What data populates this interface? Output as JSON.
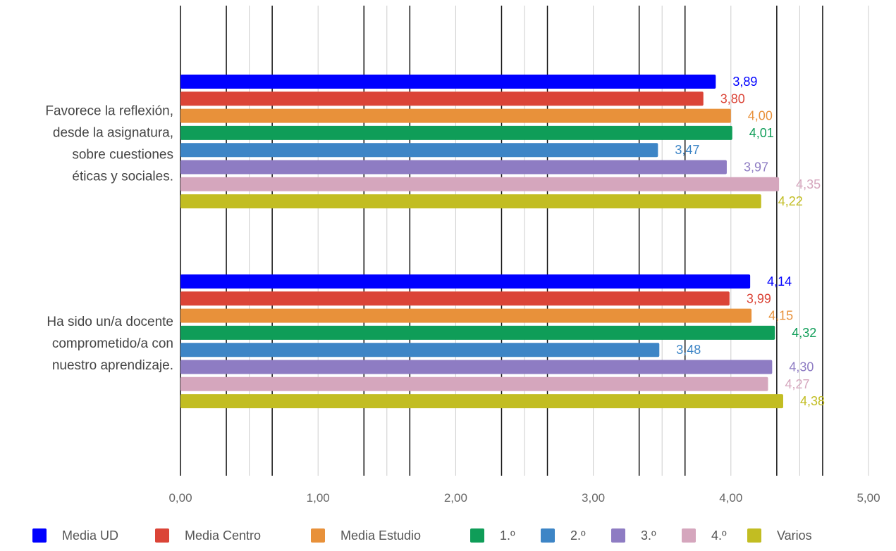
{
  "chart_data": {
    "type": "bar",
    "orientation": "horizontal",
    "title": "",
    "xlabel": "",
    "ylabel": "",
    "xlim": [
      0,
      5
    ],
    "x_ticks": [
      "0,00",
      "1,00",
      "2,00",
      "3,00",
      "4,00",
      "5,00"
    ],
    "grid": true,
    "legend_position": "bottom",
    "categories": [
      {
        "lines": [
          "Favorece la reflexión,",
          "desde la asignatura,",
          "sobre cuestiones",
          "éticas y sociales."
        ]
      },
      {
        "lines": [
          "Ha sido un/a docente",
          "comprometido/a con",
          "nuestro aprendizaje."
        ]
      }
    ],
    "series": [
      {
        "name": "Media UD",
        "color": "#0000ff",
        "values": [
          3.89,
          4.14
        ],
        "labels": [
          "3,89",
          "4,14"
        ]
      },
      {
        "name": "Media Centro",
        "color": "#db4437",
        "values": [
          3.8,
          3.99
        ],
        "labels": [
          "3,80",
          "3,99"
        ]
      },
      {
        "name": "Media Estudio",
        "color": "#e8913a",
        "values": [
          4.0,
          4.15
        ],
        "labels": [
          "4,00",
          "4,15"
        ]
      },
      {
        "name": "1.º",
        "color": "#0f9d58",
        "values": [
          4.01,
          4.32
        ],
        "labels": [
          "4,01",
          "4,32"
        ]
      },
      {
        "name": "2.º",
        "color": "#3d85c6",
        "values": [
          3.47,
          3.48
        ],
        "labels": [
          "3,47",
          "3,48"
        ]
      },
      {
        "name": "3.º",
        "color": "#8e7cc3",
        "values": [
          3.97,
          4.3
        ],
        "labels": [
          "3,97",
          "4,30"
        ]
      },
      {
        "name": "4.º",
        "color": "#d5a6bd",
        "values": [
          4.35,
          4.27
        ],
        "labels": [
          "4,35",
          "4,27"
        ]
      },
      {
        "name": "Varios",
        "color": "#c2bd22",
        "values": [
          4.22,
          4.38
        ],
        "labels": [
          "4,22",
          "4,38"
        ]
      }
    ]
  }
}
